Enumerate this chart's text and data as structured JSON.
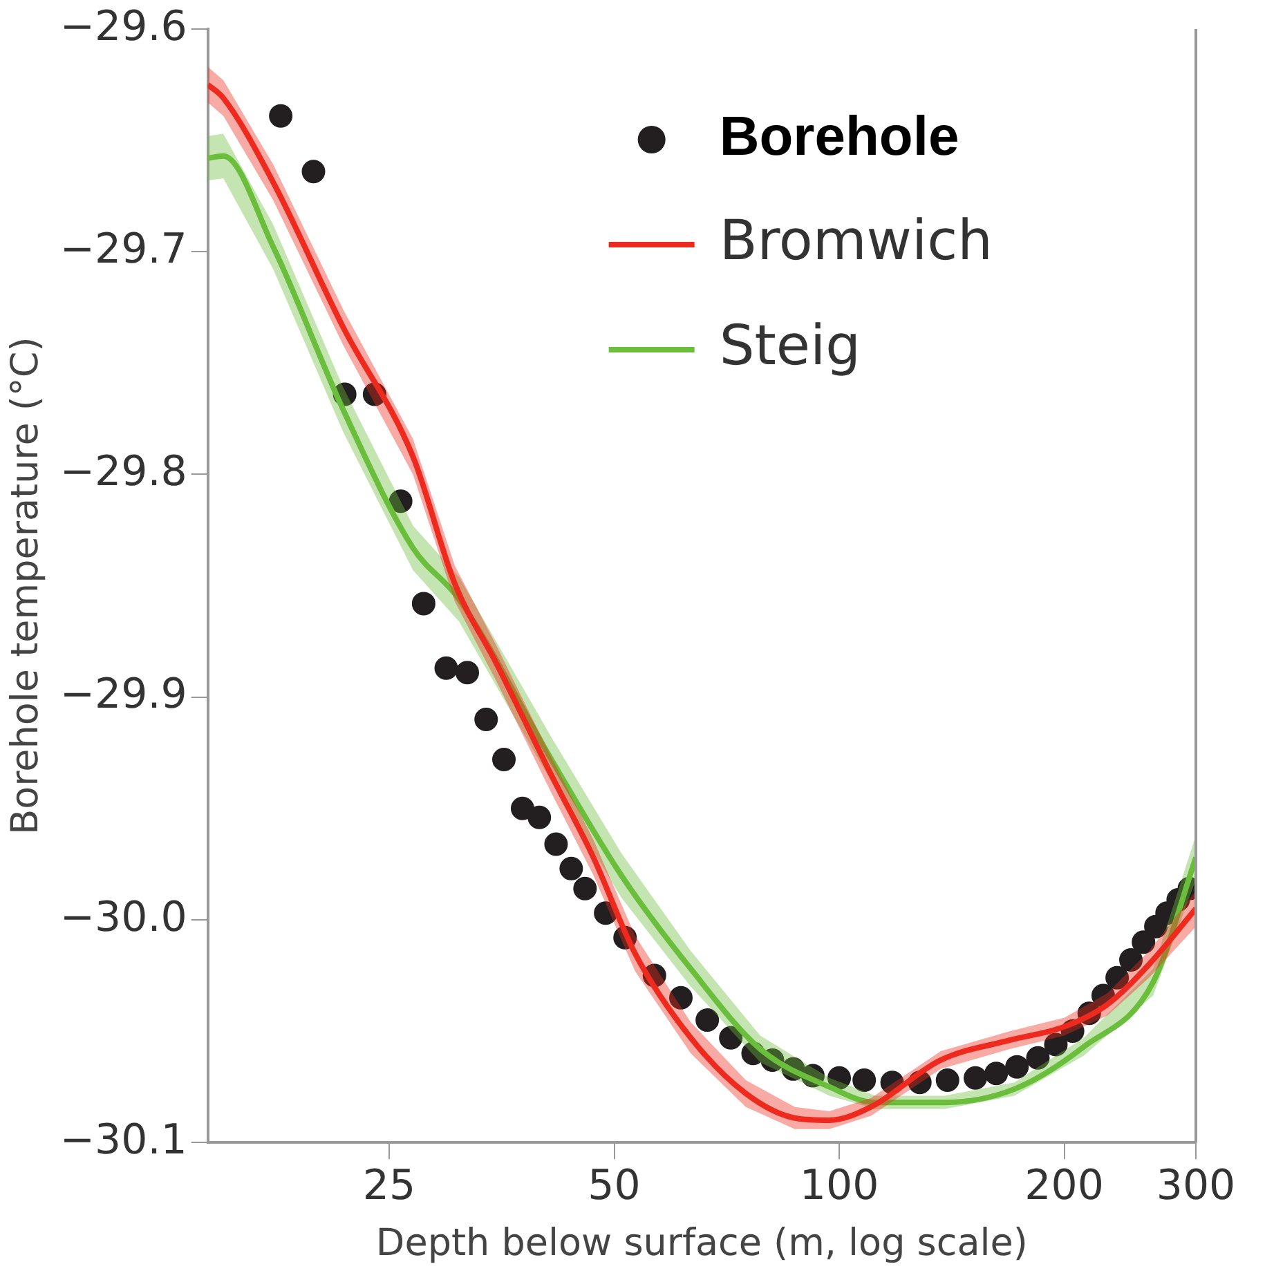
{
  "chart_data": {
    "type": "scatter",
    "xlabel": "Depth below surface (m, log scale)",
    "ylabel": "Borehole temperature (°C)",
    "log": "x",
    "xlim": [
      14.3,
      300
    ],
    "xticks": [
      25,
      50,
      100,
      200,
      300
    ],
    "ylim": [
      -30.1,
      -29.6
    ],
    "yticks": [
      {
        "value": -29.6,
        "label": "−29.6"
      },
      {
        "value": -29.7,
        "label": "−29.7"
      },
      {
        "value": -29.8,
        "label": "−29.8"
      },
      {
        "value": -29.9,
        "label": "−29.9"
      },
      {
        "value": -30.0,
        "label": "−30.0"
      },
      {
        "value": -30.1,
        "label": "−30.1"
      }
    ],
    "grid": false,
    "legend": "top right",
    "series": [
      {
        "name": "Bromwich",
        "type": "line",
        "color": "#ee2a1e",
        "x": [
          14.3,
          15.0,
          17.5,
          21.7,
          26.9,
          30.6,
          34.8,
          41.2,
          46.9,
          53.3,
          63.3,
          75.0,
          87.2,
          97.0,
          110.3,
          136.7,
          169.3,
          200,
          228.4,
          259.7,
          300
        ],
        "values": [
          -29.625,
          -29.631,
          -29.669,
          -29.734,
          -29.792,
          -29.849,
          -29.885,
          -29.935,
          -29.972,
          -30.015,
          -30.053,
          -30.078,
          -30.089,
          -30.09,
          -30.084,
          -30.063,
          -30.054,
          -30.048,
          -30.038,
          -30.02,
          -29.995
        ],
        "lower": [
          -29.633,
          -29.639,
          -29.677,
          -29.742,
          -29.8,
          -29.857,
          -29.893,
          -29.943,
          -29.98,
          -30.023,
          -30.06,
          -30.084,
          -30.094,
          -30.094,
          -30.088,
          -30.067,
          -30.058,
          -30.052,
          -30.043,
          -30.026,
          -30.003
        ],
        "upper": [
          -29.617,
          -29.623,
          -29.661,
          -29.726,
          -29.784,
          -29.841,
          -29.877,
          -29.927,
          -29.964,
          -30.007,
          -30.046,
          -30.072,
          -30.084,
          -30.086,
          -30.08,
          -30.059,
          -30.05,
          -30.044,
          -30.033,
          -30.014,
          -29.987
        ]
      },
      {
        "name": "Steig",
        "type": "line",
        "color": "#6cbf3c",
        "x": [
          14.3,
          15.0,
          17.5,
          21.7,
          26.9,
          31.0,
          41.2,
          51.1,
          63.3,
          78.4,
          97.0,
          111.8,
          138.4,
          171.5,
          212.4,
          263.0,
          300
        ],
        "values": [
          -29.658,
          -29.657,
          -29.698,
          -29.771,
          -29.833,
          -29.856,
          -29.928,
          -29.98,
          -30.022,
          -30.058,
          -30.075,
          -30.082,
          -30.082,
          -30.076,
          -30.057,
          -30.028,
          -29.972
        ],
        "lower": [
          -29.668,
          -29.667,
          -29.708,
          -29.781,
          -29.843,
          -29.866,
          -29.938,
          -29.99,
          -30.03,
          -30.064,
          -30.079,
          -30.085,
          -30.085,
          -30.079,
          -30.061,
          -30.034,
          -29.982
        ],
        "upper": [
          -29.648,
          -29.647,
          -29.688,
          -29.761,
          -29.823,
          -29.846,
          -29.918,
          -29.97,
          -30.014,
          -30.052,
          -30.071,
          -30.079,
          -30.079,
          -30.073,
          -30.053,
          -30.022,
          -29.962
        ]
      },
      {
        "name": "Borehole",
        "color": "#231f20",
        "marker": "circle",
        "x": [
          17.9,
          19.8,
          21.8,
          23.9,
          25.9,
          27.8,
          29.8,
          31.8,
          33.7,
          35.6,
          37.7,
          39.7,
          41.8,
          43.8,
          45.7,
          48.7,
          51.7,
          56.6,
          61.4,
          66.6,
          71.6,
          76.7,
          81.4,
          86.8,
          92.2,
          100,
          108.0,
          117.7,
          128.2,
          139.6,
          152.1,
          162.2,
          172.9,
          184.4,
          194.9,
          205.2,
          216.0,
          225.5,
          235.4,
          245.6,
          255.3,
          265.2,
          274.5,
          284.1,
          294.0
        ],
        "values": [
          -29.639,
          -29.664,
          -29.764,
          -29.764,
          -29.812,
          -29.858,
          -29.887,
          -29.889,
          -29.91,
          -29.928,
          -29.95,
          -29.954,
          -29.966,
          -29.977,
          -29.986,
          -29.997,
          -30.008,
          -30.025,
          -30.035,
          -30.045,
          -30.053,
          -30.06,
          -30.063,
          -30.067,
          -30.07,
          -30.071,
          -30.072,
          -30.073,
          -30.073,
          -30.072,
          -30.071,
          -30.069,
          -30.066,
          -30.062,
          -30.056,
          -30.05,
          -30.042,
          -30.034,
          -30.026,
          -30.018,
          -30.01,
          -30.003,
          -29.997,
          -29.991,
          -29.986
        ]
      }
    ]
  }
}
